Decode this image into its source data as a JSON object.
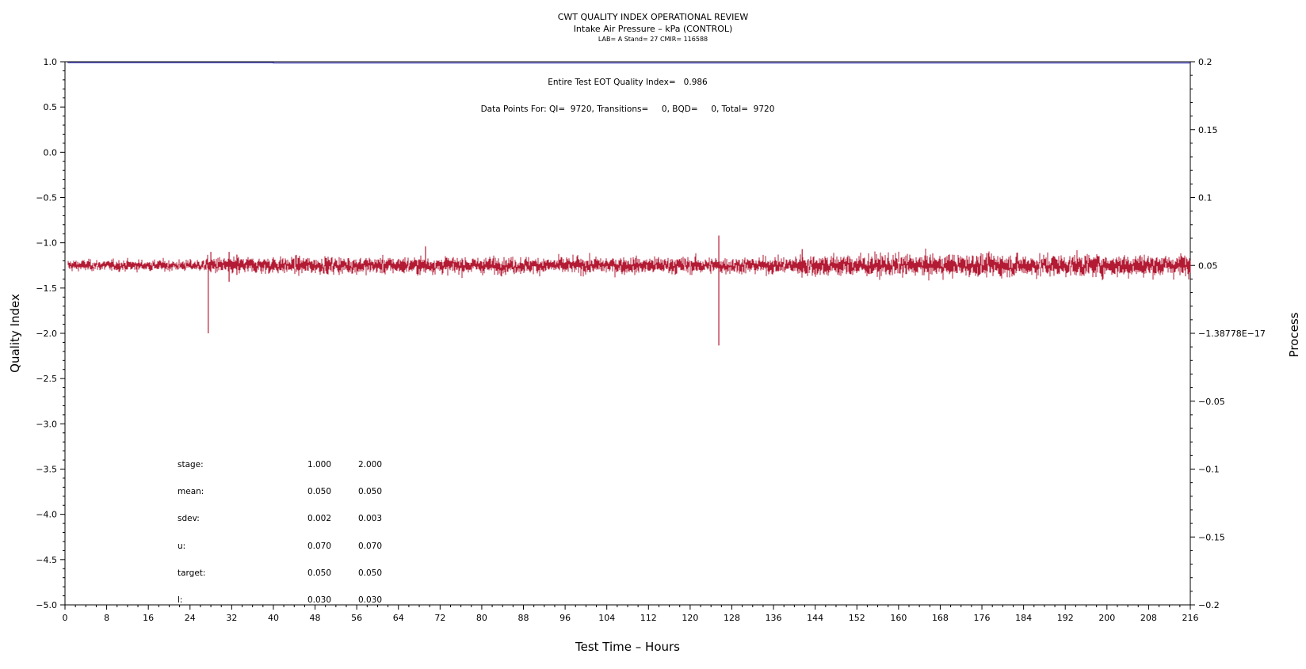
{
  "chart_data": {
    "type": "line",
    "title": "CWT QUALITY INDEX OPERATIONAL REVIEW",
    "subtitle": "Intake Air Pressure – kPa (CONTROL)",
    "subtitle2": "LAB= A Stand= 27 CMIR= 116588",
    "xlabel": "Test Time – Hours",
    "ylabel": "Quality Index",
    "y2label": "Process",
    "xlim": [
      0,
      216
    ],
    "ylim": [
      -5.0,
      1.0
    ],
    "y2lim": [
      -0.2,
      0.2
    ],
    "x_ticks": [
      0,
      8,
      16,
      24,
      32,
      40,
      48,
      56,
      64,
      72,
      80,
      88,
      96,
      104,
      112,
      120,
      128,
      136,
      144,
      152,
      160,
      168,
      176,
      184,
      192,
      200,
      208,
      216
    ],
    "y_ticks": [
      1.0,
      0.5,
      0.0,
      -0.5,
      -1.0,
      -1.5,
      -2.0,
      -2.5,
      -3.0,
      -3.5,
      -4.0,
      -4.5,
      -5.0
    ],
    "y_tick_labels": [
      "1.0",
      "0.5",
      "0.0",
      "−0.5",
      "−1.0",
      "−1.5",
      "−2.0",
      "−2.5",
      "−3.0",
      "−3.5",
      "−4.0",
      "−4.5",
      "−5.0"
    ],
    "y2_ticks": [
      0.2,
      0.15,
      0.1,
      0.05,
      0.0,
      -0.05,
      -0.1,
      -0.15,
      -0.2
    ],
    "y2_tick_labels": [
      "0.2",
      "0.15",
      "0.1",
      "0.05",
      "−1.38778E−17",
      "−0.05",
      "−0.1",
      "−0.15",
      "−0.2"
    ],
    "grid": false,
    "series": [
      {
        "axis": "left",
        "color": "#1f1fbf",
        "x": [
          0.5,
          40,
          40,
          216
        ],
        "y": [
          0.99,
          0.99,
          0.986,
          0.986
        ]
      },
      {
        "axis": "right",
        "color": "#b31b34",
        "mean": 0.05,
        "noise_by_segment": [
          {
            "x": [
              0.5,
              27
            ],
            "sdev": 0.002
          },
          {
            "x": [
              27,
              64
            ],
            "sdev": 0.003
          },
          {
            "x": [
              64,
              140
            ],
            "sdev": 0.003
          },
          {
            "x": [
              140,
              216
            ],
            "sdev": 0.004
          }
        ],
        "spikes": [
          {
            "x": 27.5,
            "min": 0.0,
            "max": 0.052
          },
          {
            "x": 28.0,
            "min": 0.045,
            "max": 0.06
          },
          {
            "x": 31.5,
            "min": 0.038,
            "max": 0.06
          },
          {
            "x": 33.0,
            "min": 0.043,
            "max": 0.058
          },
          {
            "x": 69.2,
            "min": 0.045,
            "max": 0.064
          },
          {
            "x": 125.5,
            "min": -0.009,
            "max": 0.072
          },
          {
            "x": 141.5,
            "min": 0.045,
            "max": 0.062
          },
          {
            "x": 175.0,
            "min": 0.044,
            "max": 0.057
          }
        ]
      }
    ],
    "annotations": [
      "Entire Test EOT Quality Index=   0.986",
      "Data Points For: QI=  9720, Transitions=     0, BQD=     0, Total=  9720"
    ],
    "stats_table": {
      "rows": [
        {
          "label": "stage:",
          "values": [
            "1.000",
            "2.000"
          ]
        },
        {
          "label": "mean:",
          "values": [
            "0.050",
            "0.050"
          ]
        },
        {
          "label": "sdev:",
          "values": [
            "0.002",
            "0.003"
          ]
        },
        {
          "label": "u:",
          "values": [
            "0.070",
            "0.070"
          ]
        },
        {
          "label": "target:",
          "values": [
            "0.050",
            "0.050"
          ]
        },
        {
          "label": "l:",
          "values": [
            "0.030",
            "0.030"
          ]
        }
      ]
    }
  }
}
